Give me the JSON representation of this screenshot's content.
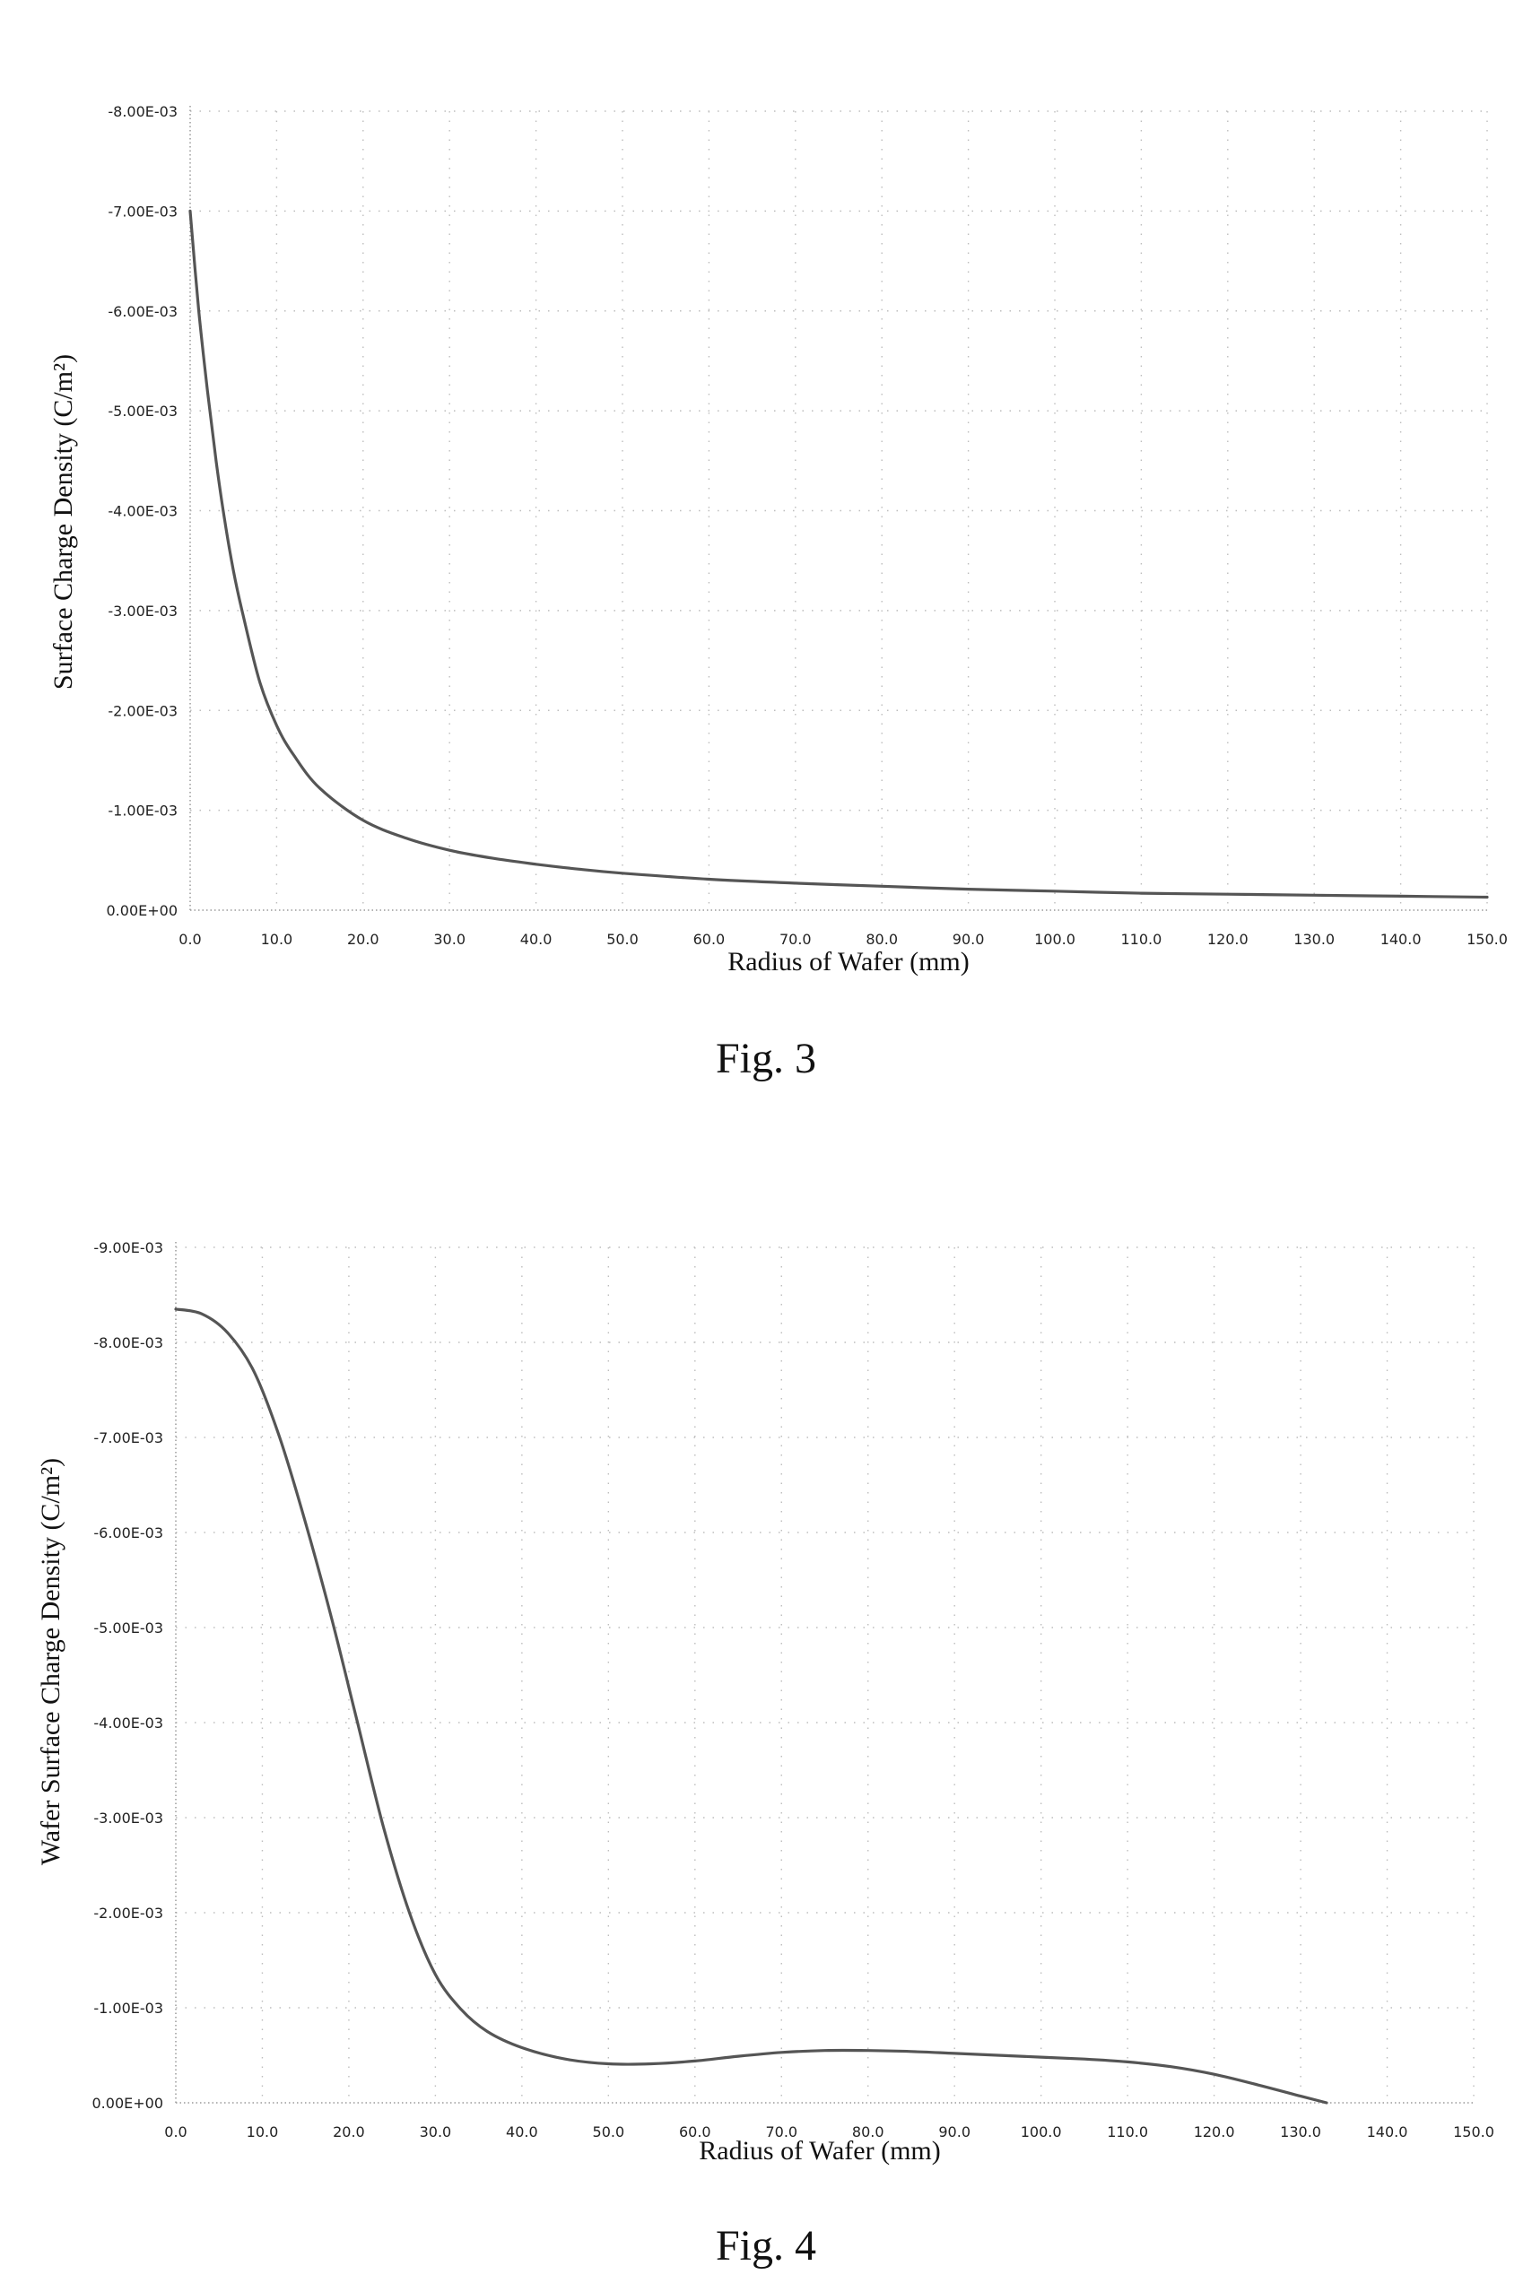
{
  "chart_data": [
    {
      "type": "line",
      "figure_label": "Fig. 3",
      "xlabel": "Radius of Wafer (mm)",
      "ylabel": "Surface Charge Density (C/m²)",
      "x_ticks": [
        "0.0",
        "10.0",
        "20.0",
        "30.0",
        "40.0",
        "50.0",
        "60.0",
        "70.0",
        "80.0",
        "90.0",
        "100.0",
        "110.0",
        "120.0",
        "130.0",
        "140.0",
        "150.0"
      ],
      "y_ticks": [
        "0.00E+00",
        "-1.00E-03",
        "-2.00E-03",
        "-3.00E-03",
        "-4.00E-03",
        "-5.00E-03",
        "-6.00E-03",
        "-7.00E-03",
        "-8.00E-03"
      ],
      "xlim": [
        0,
        150
      ],
      "ylim": [
        0,
        -0.008
      ],
      "grid": "dotted",
      "x": [
        0,
        1,
        2,
        3,
        4,
        5,
        6,
        8,
        10,
        12,
        15,
        20,
        25,
        30,
        35,
        40,
        45,
        50,
        60,
        70,
        80,
        90,
        100,
        110,
        120,
        130,
        140,
        150
      ],
      "y": [
        -0.007,
        -0.006,
        -0.0052,
        -0.0045,
        -0.0039,
        -0.0034,
        -0.003,
        -0.0023,
        -0.00185,
        -0.00155,
        -0.00122,
        -0.0009,
        -0.00072,
        -0.0006,
        -0.00052,
        -0.00046,
        -0.00041,
        -0.00037,
        -0.00031,
        -0.00027,
        -0.00024,
        -0.00021,
        -0.00019,
        -0.00017,
        -0.00016,
        -0.00015,
        -0.00014,
        -0.00013
      ]
    },
    {
      "type": "line",
      "figure_label": "Fig. 4",
      "xlabel": "Radius of Wafer (mm)",
      "ylabel": "Wafer Surface Charge Density (C/m²)",
      "x_ticks": [
        "0.0",
        "10.0",
        "20.0",
        "30.0",
        "40.0",
        "50.0",
        "60.0",
        "70.0",
        "80.0",
        "90.0",
        "100.0",
        "110.0",
        "120.0",
        "130.0",
        "140.0",
        "150.0"
      ],
      "y_ticks": [
        "0.00E+00",
        "-1.00E-03",
        "-2.00E-03",
        "-3.00E-03",
        "-4.00E-03",
        "-5.00E-03",
        "-6.00E-03",
        "-7.00E-03",
        "-8.00E-03",
        "-9.00E-03"
      ],
      "xlim": [
        0,
        150
      ],
      "ylim": [
        0,
        -0.009
      ],
      "grid": "dotted",
      "x": [
        0,
        3,
        6,
        9,
        12,
        15,
        18,
        21,
        24,
        27,
        30,
        33,
        36,
        40,
        45,
        50,
        55,
        60,
        65,
        70,
        75,
        80,
        85,
        90,
        95,
        100,
        105,
        110,
        115,
        120,
        125,
        130,
        133
      ],
      "y": [
        -0.00835,
        -0.0083,
        -0.0081,
        -0.0077,
        -0.007,
        -0.0061,
        -0.0051,
        -0.004,
        -0.0029,
        -0.002,
        -0.00135,
        -0.00098,
        -0.00075,
        -0.00058,
        -0.00046,
        -0.00041,
        -0.00041,
        -0.00044,
        -0.00049,
        -0.00053,
        -0.00055,
        -0.00055,
        -0.00054,
        -0.00052,
        -0.0005,
        -0.00048,
        -0.00046,
        -0.00043,
        -0.00038,
        -0.0003,
        -0.00019,
        -7e-05,
        0.0
      ]
    }
  ]
}
